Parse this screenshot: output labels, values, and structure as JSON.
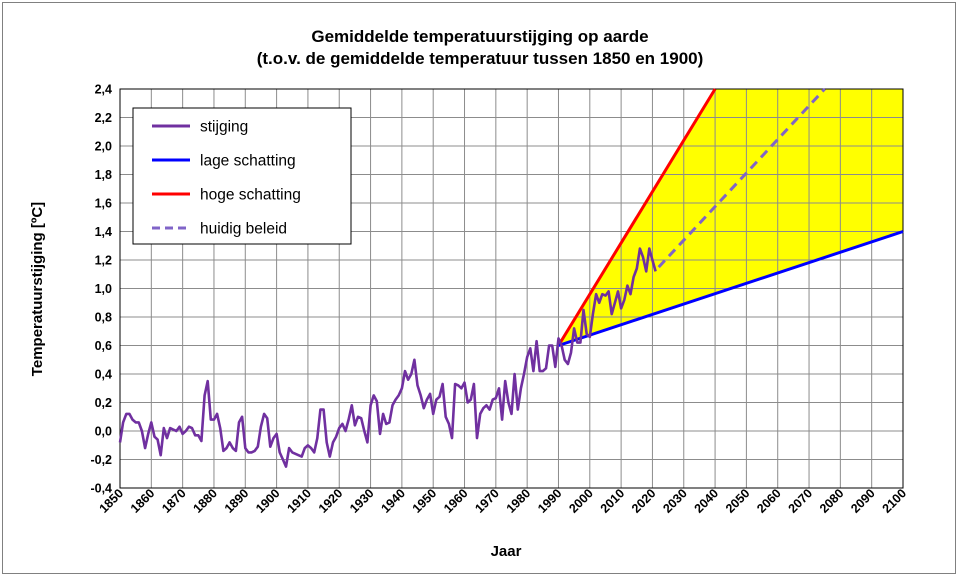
{
  "chart_data": {
    "type": "line",
    "title": "Gemiddelde  temperatuurstijging  op aarde",
    "subtitle": "(t.o.v. de gemiddelde  temperatuur tussen 1850 en 1900)",
    "xlabel": "Jaar",
    "ylabel": "Temperatuurstijging [ºC]",
    "xlim": [
      1850,
      2100
    ],
    "ylim": [
      -0.4,
      2.4
    ],
    "x_ticks": [
      1850,
      1860,
      1870,
      1880,
      1890,
      1900,
      1910,
      1920,
      1930,
      1940,
      1950,
      1960,
      1970,
      1980,
      1990,
      2000,
      2010,
      2020,
      2030,
      2040,
      2050,
      2060,
      2070,
      2080,
      2090,
      2100
    ],
    "y_ticks": [
      "-0,4",
      "-0,2",
      "0,0",
      "0,2",
      "0,4",
      "0,6",
      "0,8",
      "1,0",
      "1,2",
      "1,4",
      "1,6",
      "1,8",
      "2,0",
      "2,2",
      "2,4"
    ],
    "y_tick_values": [
      -0.4,
      -0.2,
      0.0,
      0.2,
      0.4,
      0.6,
      0.8,
      1.0,
      1.2,
      1.4,
      1.6,
      1.8,
      2.0,
      2.2,
      2.4
    ],
    "grid": true,
    "legend_position": "top-left",
    "band": {
      "fill": "#ffff00",
      "between": [
        "hoge schatting",
        "lage schatting"
      ]
    },
    "series": [
      {
        "name": "stijging",
        "color": "#7030a0",
        "style": "solid",
        "x": [
          1850,
          1851,
          1852,
          1853,
          1854,
          1855,
          1856,
          1857,
          1858,
          1859,
          1860,
          1861,
          1862,
          1863,
          1864,
          1865,
          1866,
          1867,
          1868,
          1869,
          1870,
          1871,
          1872,
          1873,
          1874,
          1875,
          1876,
          1877,
          1878,
          1879,
          1880,
          1881,
          1882,
          1883,
          1884,
          1885,
          1886,
          1887,
          1888,
          1889,
          1890,
          1891,
          1892,
          1893,
          1894,
          1895,
          1896,
          1897,
          1898,
          1899,
          1900,
          1901,
          1902,
          1903,
          1904,
          1905,
          1906,
          1907,
          1908,
          1909,
          1910,
          1911,
          1912,
          1913,
          1914,
          1915,
          1916,
          1917,
          1918,
          1919,
          1920,
          1921,
          1922,
          1923,
          1924,
          1925,
          1926,
          1927,
          1928,
          1929,
          1930,
          1931,
          1932,
          1933,
          1934,
          1935,
          1936,
          1937,
          1938,
          1939,
          1940,
          1941,
          1942,
          1943,
          1944,
          1945,
          1946,
          1947,
          1948,
          1949,
          1950,
          1951,
          1952,
          1953,
          1954,
          1955,
          1956,
          1957,
          1958,
          1959,
          1960,
          1961,
          1962,
          1963,
          1964,
          1965,
          1966,
          1967,
          1968,
          1969,
          1970,
          1971,
          1972,
          1973,
          1974,
          1975,
          1976,
          1977,
          1978,
          1979,
          1980,
          1981,
          1982,
          1983,
          1984,
          1985,
          1986,
          1987,
          1988,
          1989,
          1990,
          1991,
          1992,
          1993,
          1994,
          1995,
          1996,
          1997,
          1998,
          1999,
          2000,
          2001,
          2002,
          2003,
          2004,
          2005,
          2006,
          2007,
          2008,
          2009,
          2010,
          2011,
          2012,
          2013,
          2014,
          2015,
          2016,
          2017,
          2018,
          2019,
          2020,
          2021
        ],
        "values": [
          -0.08,
          0.06,
          0.12,
          0.12,
          0.08,
          0.06,
          0.06,
          0.0,
          -0.12,
          -0.02,
          0.06,
          -0.04,
          -0.06,
          -0.17,
          0.02,
          -0.05,
          0.02,
          0.01,
          0.0,
          0.03,
          -0.02,
          0.0,
          0.03,
          0.02,
          -0.03,
          -0.03,
          -0.07,
          0.25,
          0.35,
          0.08,
          0.08,
          0.12,
          0.02,
          -0.14,
          -0.12,
          -0.08,
          -0.12,
          -0.14,
          0.06,
          0.1,
          -0.12,
          -0.15,
          -0.15,
          -0.14,
          -0.11,
          0.03,
          0.12,
          0.09,
          -0.11,
          -0.05,
          -0.02,
          -0.15,
          -0.2,
          -0.25,
          -0.12,
          -0.15,
          -0.16,
          -0.17,
          -0.18,
          -0.12,
          -0.1,
          -0.12,
          -0.15,
          -0.05,
          0.15,
          0.15,
          -0.08,
          -0.18,
          -0.08,
          -0.04,
          0.02,
          0.05,
          0.0,
          0.08,
          0.18,
          0.04,
          0.1,
          0.09,
          0.0,
          -0.08,
          0.18,
          0.25,
          0.21,
          -0.02,
          0.12,
          0.05,
          0.06,
          0.18,
          0.22,
          0.25,
          0.3,
          0.42,
          0.36,
          0.4,
          0.5,
          0.32,
          0.25,
          0.16,
          0.22,
          0.26,
          0.12,
          0.22,
          0.24,
          0.33,
          0.1,
          0.05,
          -0.05,
          0.33,
          0.32,
          0.3,
          0.34,
          0.2,
          0.22,
          0.33,
          -0.05,
          0.12,
          0.16,
          0.18,
          0.15,
          0.22,
          0.23,
          0.3,
          0.08,
          0.35,
          0.2,
          0.12,
          0.4,
          0.15,
          0.3,
          0.4,
          0.52,
          0.58,
          0.42,
          0.63,
          0.42,
          0.42,
          0.44,
          0.6,
          0.6,
          0.45,
          0.65,
          0.6,
          0.5,
          0.47,
          0.55,
          0.72,
          0.62,
          0.62,
          0.85,
          0.68,
          0.66,
          0.82,
          0.96,
          0.9,
          0.96,
          0.95,
          0.98,
          0.82,
          0.9,
          0.98,
          0.86,
          0.92,
          1.02,
          0.96,
          1.08,
          1.14,
          1.28,
          1.22,
          1.12,
          1.28,
          1.2,
          1.12
        ]
      },
      {
        "name": "lage schatting",
        "color": "#0000ff",
        "style": "solid",
        "x": [
          1990,
          2100
        ],
        "values": [
          0.6,
          1.4
        ]
      },
      {
        "name": "hoge schatting",
        "color": "#ff0000",
        "style": "solid",
        "x": [
          1990,
          2040
        ],
        "values": [
          0.6,
          2.4
        ]
      },
      {
        "name": "huidig beleid",
        "color": "#8064c8",
        "style": "dashed",
        "x": [
          2022,
          2075
        ],
        "values": [
          1.15,
          2.4
        ]
      }
    ]
  }
}
